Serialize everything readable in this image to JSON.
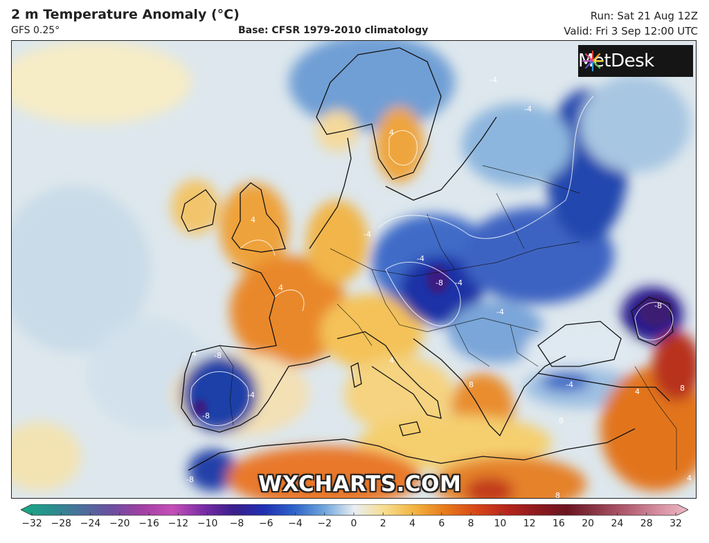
{
  "header": {
    "title": "2 m Temperature Anomaly (°C)",
    "model": "GFS 0.25°",
    "base": "Base: CFSR 1979-2010 climatology",
    "run": "Run: Sat 21 Aug 12Z",
    "valid": "Valid: Fri 3 Sep 12:00 UTC"
  },
  "logo": {
    "text": "MetDesk"
  },
  "watermark": "WXCHARTS.COM",
  "map_labels": [
    "-4",
    "-4",
    "-4",
    "-4",
    "-4",
    "-4",
    "-4",
    "-4",
    "-8",
    "-8",
    "-8",
    "-8",
    "-8",
    "4",
    "4",
    "4",
    "4",
    "4",
    "4",
    "4",
    "8",
    "8",
    "8",
    "8"
  ],
  "colorbar": {
    "ticks": [
      "−32",
      "−28",
      "−24",
      "−20",
      "−16",
      "−12",
      "−10",
      "−8",
      "−6",
      "−4",
      "−2",
      "0",
      "2",
      "4",
      "6",
      "8",
      "10",
      "12",
      "16",
      "20",
      "24",
      "28",
      "32"
    ],
    "colors": [
      "#1aa985",
      "#2a8f8e",
      "#4b6f9c",
      "#6d4fa0",
      "#a23fa3",
      "#c64fb8",
      "#7b2da6",
      "#3b1e8c",
      "#1f2fb2",
      "#2e63c9",
      "#6fa6dd",
      "#e9eef2",
      "#f7dd8e",
      "#f3b23e",
      "#e77a1b",
      "#d84717",
      "#b7261c",
      "#8e1a1e",
      "#6c1420",
      "#8d3848",
      "#b45e72",
      "#d58ea0",
      "#eeb9c6"
    ]
  }
}
